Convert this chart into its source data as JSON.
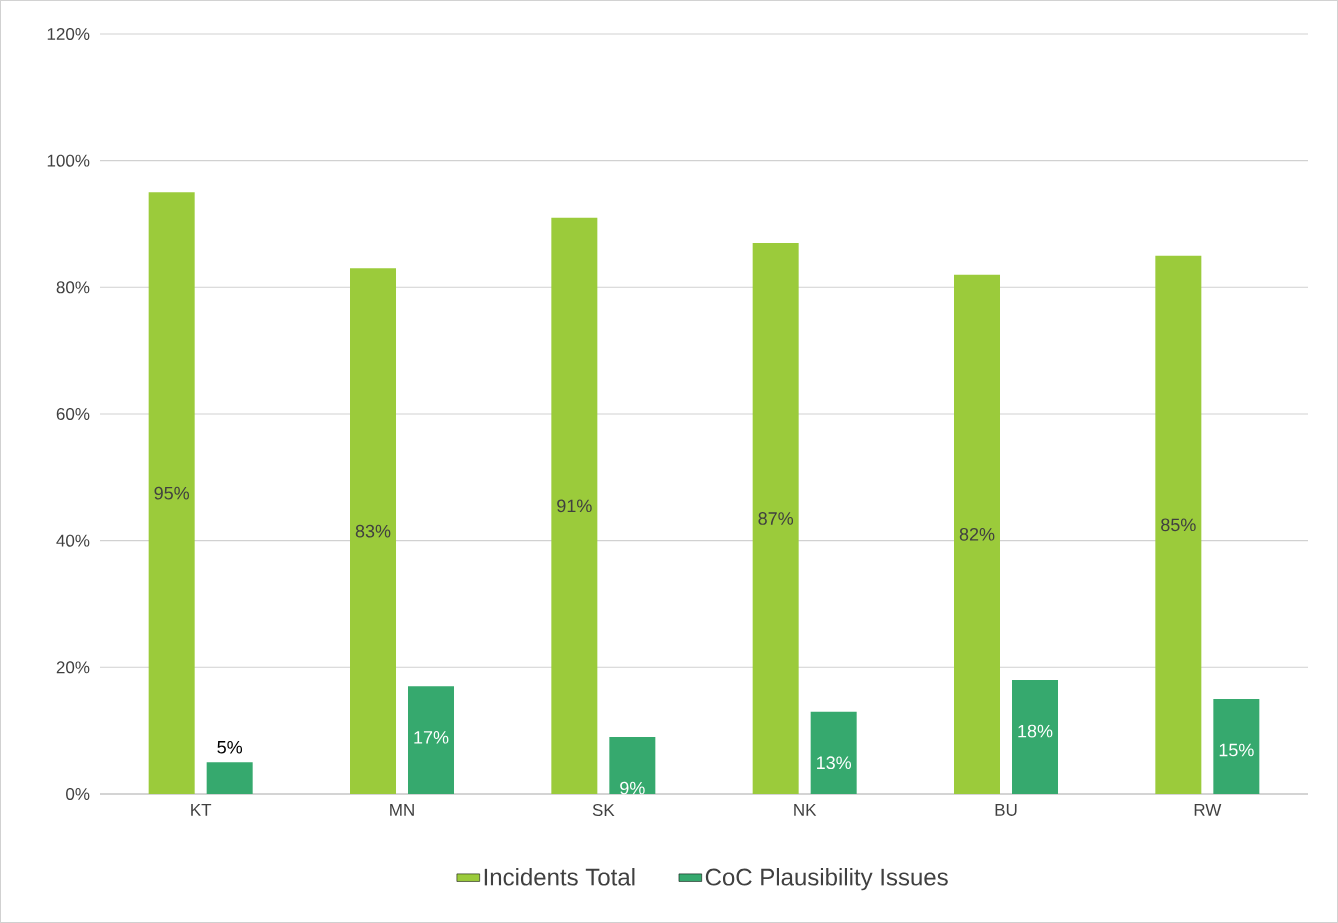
{
  "chart_data": {
    "type": "bar",
    "categories": [
      "KT",
      "MN",
      "SK",
      "NK",
      "BU",
      "RW"
    ],
    "series": [
      {
        "name": "Incidents Total",
        "color": "#9bcb3b",
        "values": [
          95,
          83,
          91,
          87,
          82,
          85
        ],
        "value_labels": [
          "95%",
          "83%",
          "91%",
          "87%",
          "82%",
          "85%"
        ]
      },
      {
        "name": "CoC Plausibility Issues",
        "color": "#36a96e",
        "values": [
          5,
          17,
          9,
          13,
          18,
          15
        ],
        "value_labels": [
          "5%",
          "17%",
          "9%",
          "13%",
          "18%",
          "15%"
        ]
      }
    ],
    "ylim": [
      0,
      120
    ],
    "yticks": [
      {
        "value": 0,
        "label": "0%"
      },
      {
        "value": 20,
        "label": "20%"
      },
      {
        "value": 40,
        "label": "40%"
      },
      {
        "value": 60,
        "label": "60%"
      },
      {
        "value": 80,
        "label": "80%"
      },
      {
        "value": 100,
        "label": "100%"
      },
      {
        "value": 120,
        "label": "120%"
      }
    ],
    "grid": "y",
    "legend": "bottom"
  }
}
